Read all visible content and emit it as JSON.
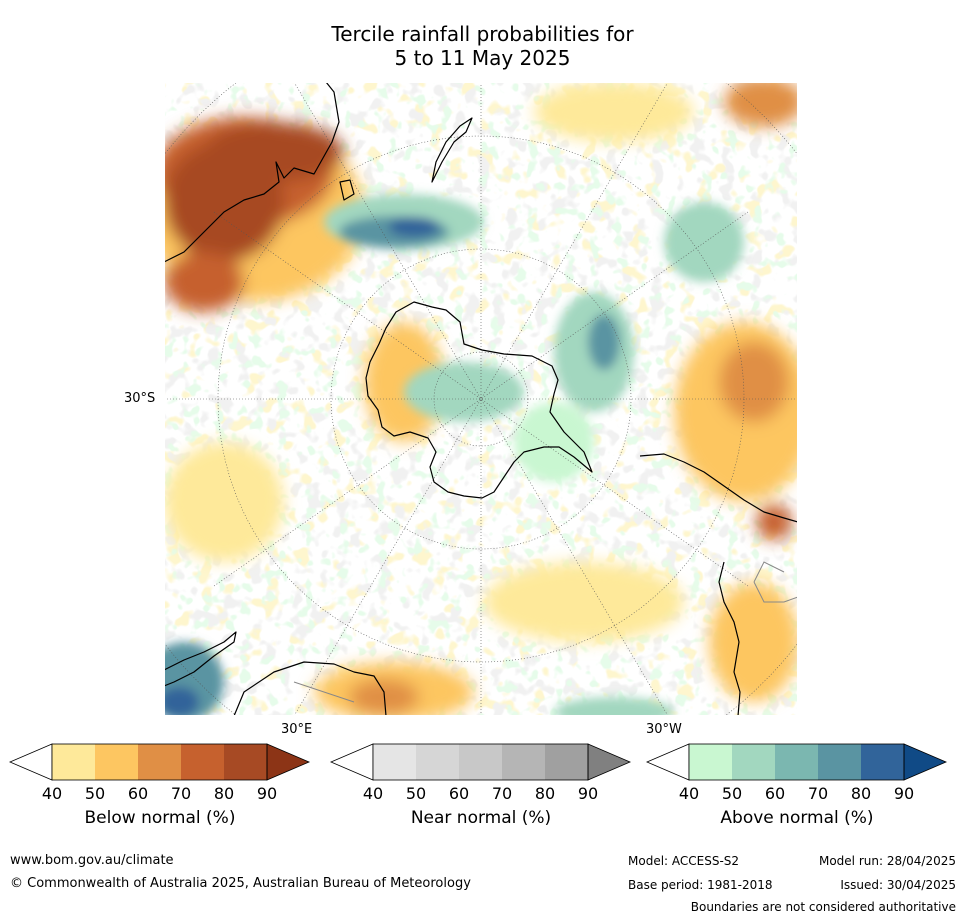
{
  "title_line1": "Tercile rainfall probabilities for",
  "title_line2": "5 to 11 May 2025",
  "map": {
    "projection": "south-polar-stereographic",
    "labels": {
      "lat": "30°S",
      "lon_east": "30°E",
      "lon_west": "30°W"
    },
    "colors": {
      "land_outline": "#000000",
      "border": "#888888",
      "graticule": "#555555"
    }
  },
  "colorbars": [
    {
      "title": "Below normal (%)",
      "ticks": [
        "40",
        "50",
        "60",
        "70",
        "80",
        "90"
      ],
      "colors": [
        "#ffffff",
        "#fee99a",
        "#fdc661",
        "#e08f45",
        "#c6612e",
        "#a74a24",
        "#8c3416"
      ]
    },
    {
      "title": "Near normal (%)",
      "ticks": [
        "40",
        "50",
        "60",
        "70",
        "80",
        "90"
      ],
      "colors": [
        "#ffffff",
        "#e5e5e5",
        "#d6d6d6",
        "#c8c8c8",
        "#b5b5b5",
        "#a0a0a0",
        "#808080"
      ]
    },
    {
      "title": "Above normal (%)",
      "ticks": [
        "40",
        "50",
        "60",
        "70",
        "80",
        "90"
      ],
      "colors": [
        "#ffffff",
        "#c9f7d1",
        "#a2d7bf",
        "#7bb7b0",
        "#5a94a2",
        "#31649a",
        "#104a86"
      ]
    }
  ],
  "footer": {
    "website": "www.bom.gov.au/climate",
    "copyright": "© Commonwealth of Australia 2025, Australian Bureau of Meteorology",
    "model": "Model: ACCESS-S2",
    "base_period": "Base period: 1981-2018",
    "model_run": "Model run: 28/04/2025",
    "issued": "Issued: 30/04/2025",
    "disclaimer": "Boundaries are not considered authoritative"
  }
}
